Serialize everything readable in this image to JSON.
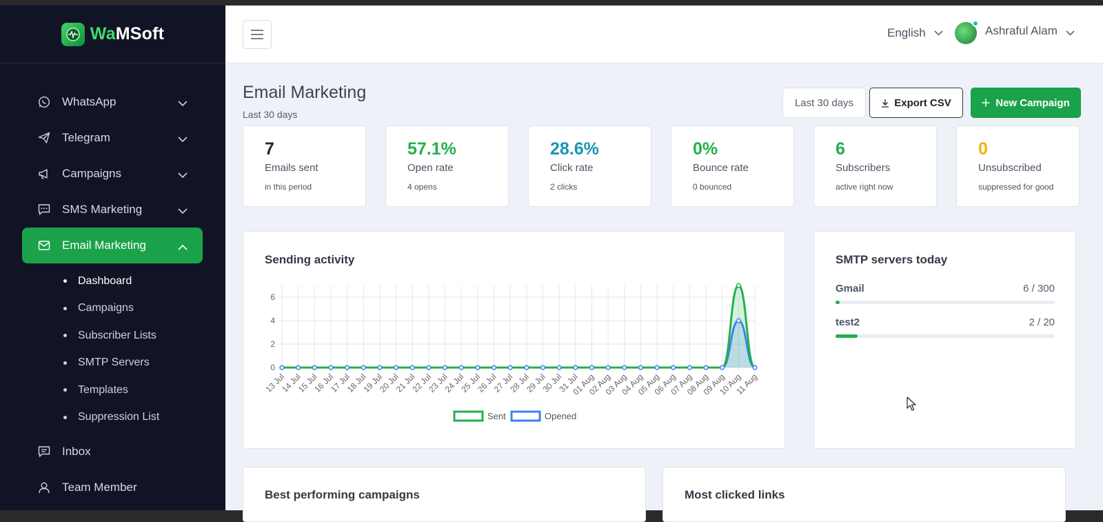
{
  "brand": {
    "logo_prefix": "Wa",
    "logo_suffix": "MSoft"
  },
  "sidebar": {
    "items": [
      {
        "label": "WhatsApp",
        "icon": "whatsapp-icon"
      },
      {
        "label": "Telegram",
        "icon": "paper-plane-icon"
      },
      {
        "label": "Campaigns",
        "icon": "megaphone-icon"
      },
      {
        "label": "SMS Marketing",
        "icon": "chat-icon"
      },
      {
        "label": "Email Marketing",
        "icon": "mail-icon",
        "active": true
      }
    ],
    "subitems": [
      "Dashboard",
      "Campaigns",
      "Subscriber Lists",
      "SMTP Servers",
      "Templates",
      "Suppression List"
    ],
    "bottom_items": [
      {
        "label": "Inbox",
        "icon": "message-icon"
      },
      {
        "label": "Team Member",
        "icon": "user-icon"
      }
    ]
  },
  "topbar": {
    "language": "English",
    "user_name": "Ashraful Alam"
  },
  "page": {
    "title": "Email Marketing",
    "subtitle": "Last 30 days",
    "range_button": "Last 30 days",
    "export_button": "Export CSV",
    "new_button": "New Campaign"
  },
  "stats": [
    {
      "value": "7",
      "label": "Emails sent",
      "note": "in this period",
      "color": "#1f2937"
    },
    {
      "value": "57.1%",
      "label": "Open rate",
      "note": "4 opens",
      "color": "#22b14c"
    },
    {
      "value": "28.6%",
      "label": "Click rate",
      "note": "2 clicks",
      "color": "#1597b8"
    },
    {
      "value": "0%",
      "label": "Bounce rate",
      "note": "0 bounced",
      "color": "#22b14c"
    },
    {
      "value": "6",
      "label": "Subscribers",
      "note": "active right now",
      "color": "#22b14c"
    },
    {
      "value": "0",
      "label": "Unsubscribed",
      "note": "suppressed for good",
      "color": "#f5b018"
    }
  ],
  "activity": {
    "title": "Sending activity"
  },
  "chart_data": {
    "type": "area",
    "categories": [
      "13 Jul",
      "14 Jul",
      "15 Jul",
      "16 Jul",
      "17 Jul",
      "18 Jul",
      "19 Jul",
      "20 Jul",
      "21 Jul",
      "22 Jul",
      "23 Jul",
      "24 Jul",
      "25 Jul",
      "26 Jul",
      "27 Jul",
      "28 Jul",
      "29 Jul",
      "30 Jul",
      "31 Jul",
      "01 Aug",
      "02 Aug",
      "03 Aug",
      "04 Aug",
      "05 Aug",
      "06 Aug",
      "07 Aug",
      "08 Aug",
      "09 Aug",
      "10 Aug",
      "11 Aug"
    ],
    "series": [
      {
        "name": "Sent",
        "color": "#22b14c",
        "values": [
          0,
          0,
          0,
          0,
          0,
          0,
          0,
          0,
          0,
          0,
          0,
          0,
          0,
          0,
          0,
          0,
          0,
          0,
          0,
          0,
          0,
          0,
          0,
          0,
          0,
          0,
          0,
          0,
          7,
          0
        ]
      },
      {
        "name": "Opened",
        "color": "#3b82f6",
        "values": [
          0,
          0,
          0,
          0,
          0,
          0,
          0,
          0,
          0,
          0,
          0,
          0,
          0,
          0,
          0,
          0,
          0,
          0,
          0,
          0,
          0,
          0,
          0,
          0,
          0,
          0,
          0,
          0,
          4,
          0
        ]
      }
    ],
    "yticks": [
      0,
      2,
      4,
      6
    ],
    "ylim": [
      0,
      7
    ],
    "grid": true,
    "legend": "bottom"
  },
  "smtp": {
    "title": "SMTP servers today",
    "servers": [
      {
        "name": "Gmail",
        "count": "6 / 300",
        "used": 6,
        "limit": 300
      },
      {
        "name": "test2",
        "count": "2 / 20",
        "used": 2,
        "limit": 20
      }
    ]
  },
  "bottom_cards": {
    "left_title": "Best performing campaigns",
    "right_title": "Most clicked links"
  }
}
